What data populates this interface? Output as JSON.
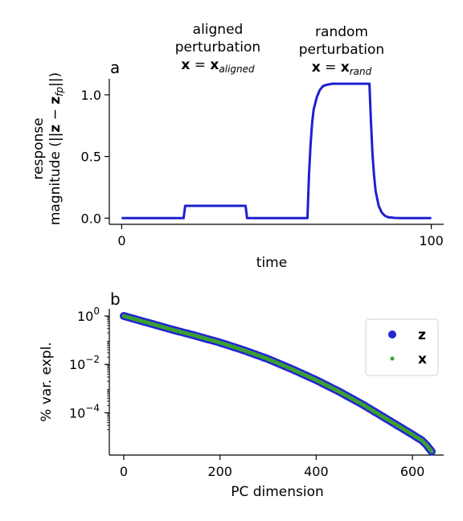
{
  "chart_data": [
    {
      "panel_label": "a",
      "type": "line",
      "xlabel": "time",
      "ylabel_line1": "response",
      "ylabel_line2_prefix": "magnitude (||",
      "ylabel_line2_bold1": "z",
      "ylabel_line2_minus": " − ",
      "ylabel_line2_bold2": "z",
      "ylabel_line2_sub": "fp",
      "ylabel_line2_suffix": "||)",
      "xlim": [
        -4,
        104
      ],
      "ylim": [
        -0.05,
        1.13
      ],
      "xticks": [
        0,
        100
      ],
      "yticks": [
        0.0,
        0.5,
        1.0
      ],
      "ytick_labels": [
        "0.0",
        "0.5",
        "1.0"
      ],
      "color": "#1f1fcf",
      "series": [
        {
          "x": [
            0,
            20,
            20.5,
            40,
            40.5,
            60,
            60.5,
            61,
            61.5,
            62,
            63,
            64,
            65,
            66,
            68,
            70,
            80,
            80.5,
            81,
            81.5,
            82,
            83,
            84,
            85,
            86,
            88,
            90,
            100
          ],
          "y": [
            0.0,
            0.0,
            0.1,
            0.1,
            0.0,
            0.0,
            0.35,
            0.6,
            0.77,
            0.88,
            0.98,
            1.04,
            1.07,
            1.08,
            1.09,
            1.09,
            1.09,
            0.78,
            0.52,
            0.35,
            0.22,
            0.1,
            0.045,
            0.02,
            0.008,
            0.002,
            0.0,
            0.0
          ]
        }
      ],
      "annotations": [
        {
          "line1": "aligned",
          "line2": "perturbation",
          "eq_bold": "x",
          "eq_mid": " = ",
          "eq_bold2": "x",
          "eq_sub": "aligned"
        },
        {
          "line1": "random",
          "line2": "perturbation",
          "eq_bold": "x",
          "eq_mid": " = ",
          "eq_bold2": "x",
          "eq_sub": "rand"
        }
      ]
    },
    {
      "panel_label": "b",
      "type": "scatter",
      "yscale": "log",
      "xlabel": "PC dimension",
      "ylabel": "% var. expl.",
      "xlim": [
        -30,
        665
      ],
      "ylim_log10": [
        -5.75,
        0.3
      ],
      "xticks": [
        0,
        200,
        400,
        600
      ],
      "yticks_log10": [
        0,
        -2,
        -4
      ],
      "legend_position": "upper right",
      "series": [
        {
          "name": "z",
          "color": "#2424d6",
          "marker_size": "large",
          "x": [
            0,
            50,
            100,
            150,
            200,
            250,
            300,
            350,
            400,
            450,
            500,
            550,
            600,
            620,
            630,
            635,
            640
          ],
          "log10_y": [
            0.0,
            -0.28,
            -0.56,
            -0.82,
            -1.1,
            -1.42,
            -1.78,
            -2.2,
            -2.65,
            -3.15,
            -3.7,
            -4.3,
            -4.9,
            -5.15,
            -5.35,
            -5.48,
            -5.6
          ]
        },
        {
          "name": "x",
          "color": "#3aa02f",
          "marker_size": "small",
          "x": [
            0,
            50,
            100,
            150,
            200,
            250,
            300,
            350,
            400,
            450,
            500,
            550,
            600,
            620,
            630,
            635,
            640
          ],
          "log10_y": [
            0.0,
            -0.28,
            -0.56,
            -0.82,
            -1.1,
            -1.42,
            -1.78,
            -2.2,
            -2.65,
            -3.15,
            -3.7,
            -4.3,
            -4.9,
            -5.15,
            -5.35,
            -5.48,
            -5.6
          ]
        }
      ]
    }
  ]
}
